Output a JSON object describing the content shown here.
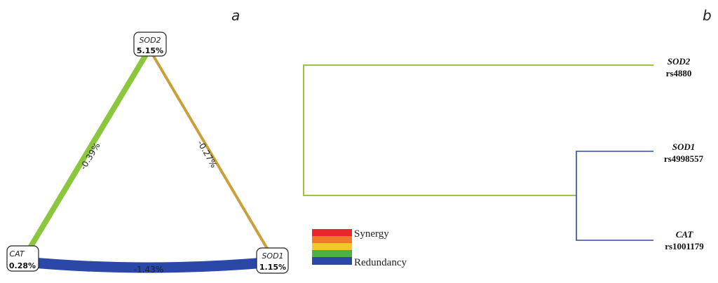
{
  "panel_a": {
    "letter": "a",
    "nodes": {
      "sod2": {
        "name": "SOD2",
        "pct": "5.15%"
      },
      "cat": {
        "name": "CAT",
        "pct": "0.28%"
      },
      "sod1": {
        "name": "SOD1",
        "pct": "1.15%"
      }
    },
    "edges": {
      "cat_sod2": {
        "label": "-0.39%",
        "color": "#8cc63f"
      },
      "sod2_sod1": {
        "label": "-0.27%",
        "color": "#c9a03a"
      },
      "cat_sod1": {
        "label": "-1.43%",
        "color": "#2b48a8"
      }
    }
  },
  "panel_b": {
    "letter": "b",
    "tree_colors": {
      "green": "#9bc53d",
      "blue": "#2b48a8"
    },
    "leaves": [
      {
        "gene": "SOD2",
        "rs": "rs4880"
      },
      {
        "gene": "SOD1",
        "rs": "rs4998557"
      },
      {
        "gene": "CAT",
        "rs": "rs1001179"
      }
    ]
  },
  "legend": {
    "top_label": "Synergy",
    "bottom_label": "Redundancy",
    "colors": [
      "#e8262b",
      "#f07a2a",
      "#f5c829",
      "#4daf4a",
      "#2b48a8"
    ]
  }
}
